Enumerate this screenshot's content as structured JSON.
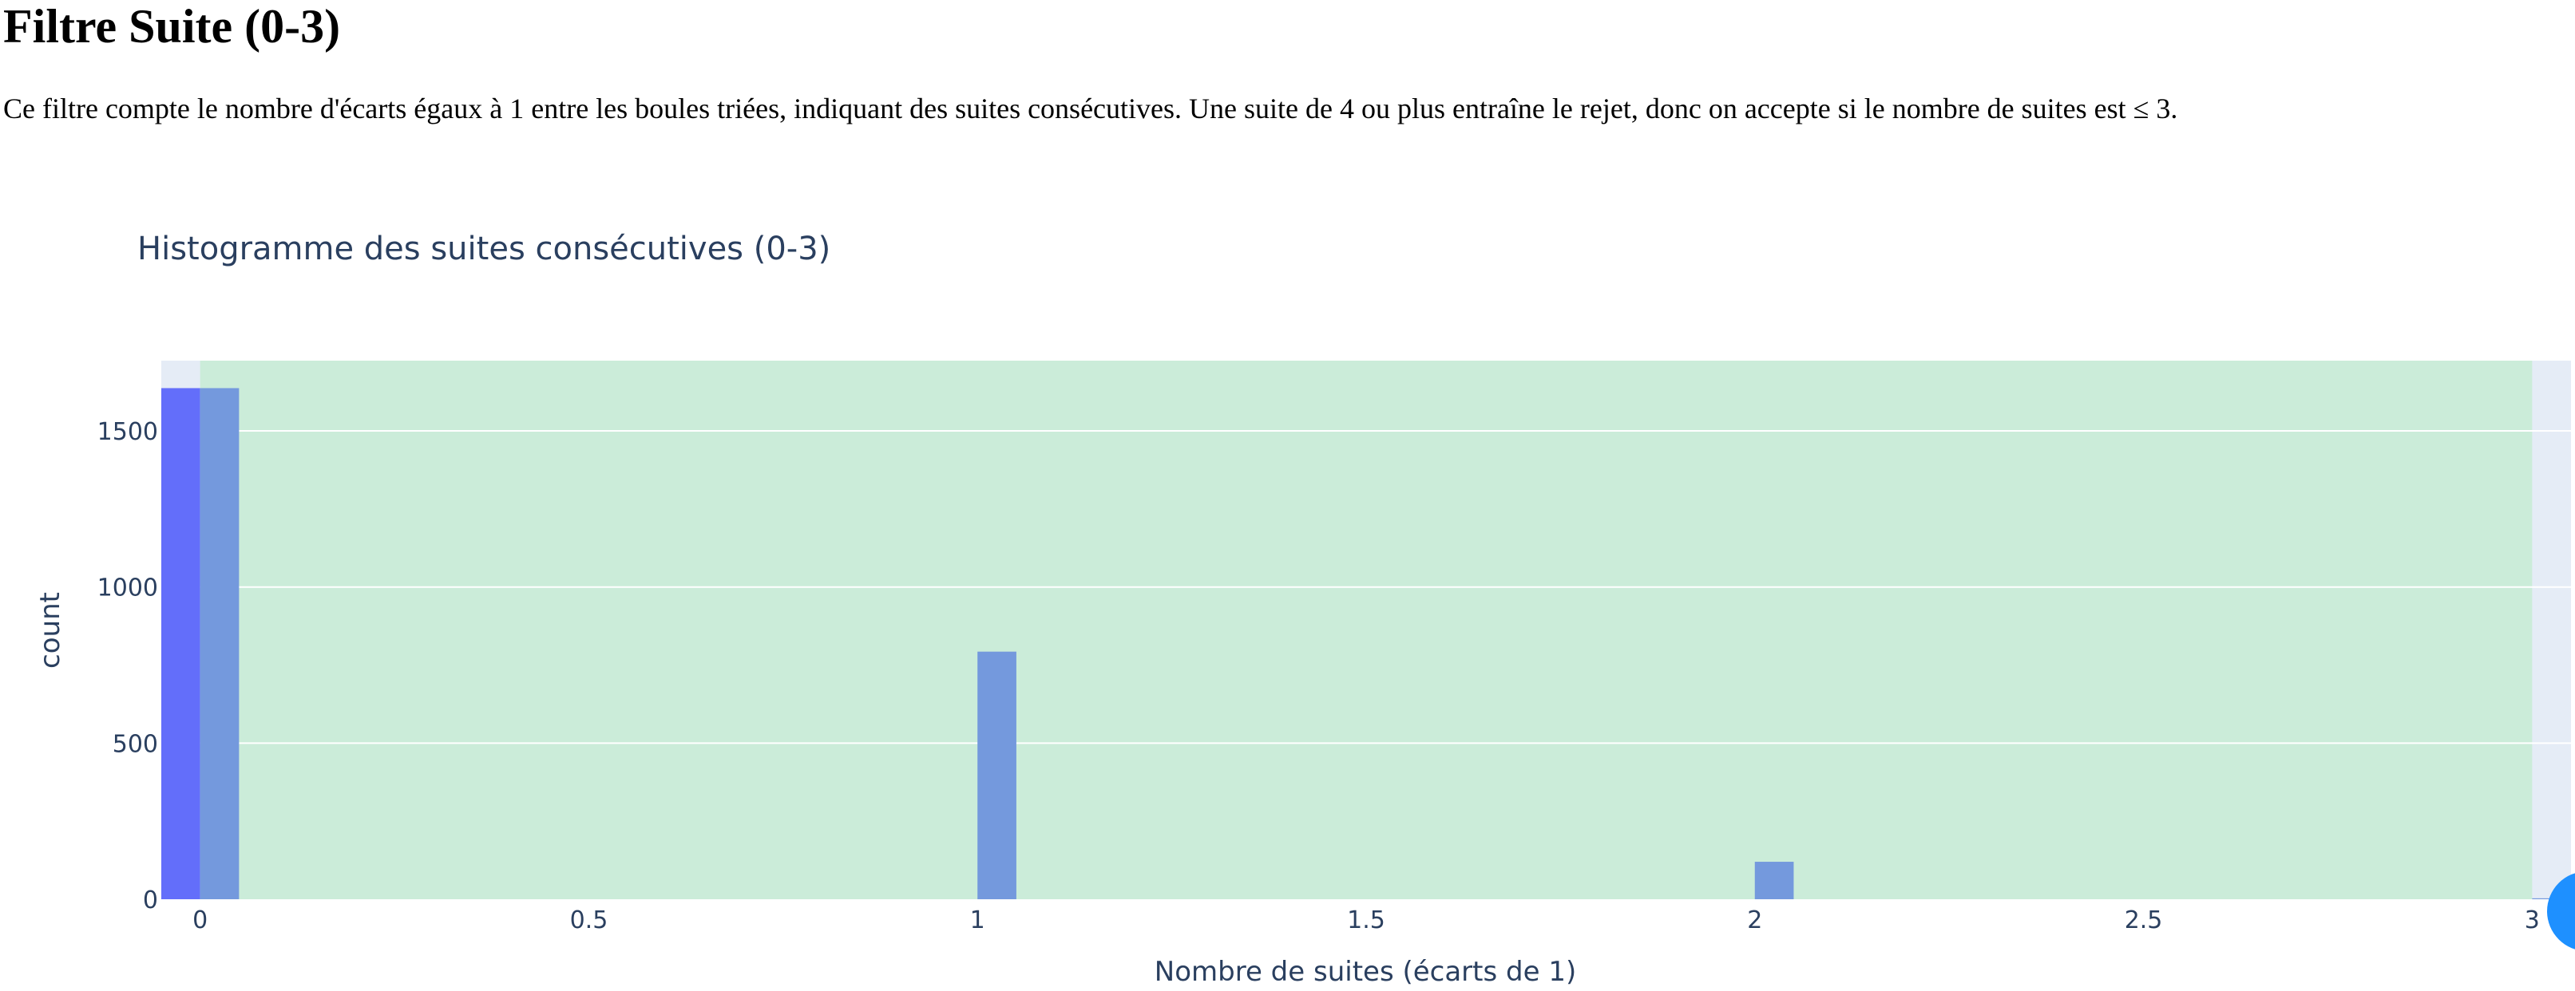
{
  "page": {
    "heading": "Filtre Suite (0-3)",
    "description": "Ce filtre compte le nombre d'écarts égaux à 1 entre les boules triées, indiquant des suites consécutives. Une suite de 4 ou plus entraîne le rejet, donc on accepte si le nombre de suites est ≤ 3."
  },
  "chart_data": {
    "type": "bar",
    "title": "Histogramme des suites consécutives (0-3)",
    "xlabel": "Nombre de suites (écarts de 1)",
    "ylabel": "count",
    "x_ticks": [
      0,
      0.5,
      1,
      1.5,
      2,
      2.5,
      3
    ],
    "x_tick_labels": [
      "0",
      "0.5",
      "1",
      "1.5",
      "2",
      "2.5",
      "3"
    ],
    "y_ticks": [
      0,
      500,
      1000,
      1500
    ],
    "y_tick_labels": [
      "0",
      "500",
      "1000",
      "1500"
    ],
    "xlim": [
      -0.05,
      3.05
    ],
    "ylim": [
      0,
      1725
    ],
    "accepted_range": [
      0,
      3
    ],
    "series": [
      {
        "color": "#636efa",
        "points": [
          {
            "x": 0,
            "value": 1637
          }
        ]
      },
      {
        "color": "#7499dd",
        "points": [
          {
            "x": 0,
            "value": 1637
          },
          {
            "x": 1,
            "value": 793
          },
          {
            "x": 2,
            "value": 120
          },
          {
            "x": 3,
            "value": 3
          }
        ]
      }
    ],
    "colors": {
      "plot_background": "#e5ecf6",
      "accepted_region": "#cbecd9",
      "grid": "#ffffff",
      "text": "#2a3f5f"
    },
    "grid": true,
    "legend": "none"
  }
}
